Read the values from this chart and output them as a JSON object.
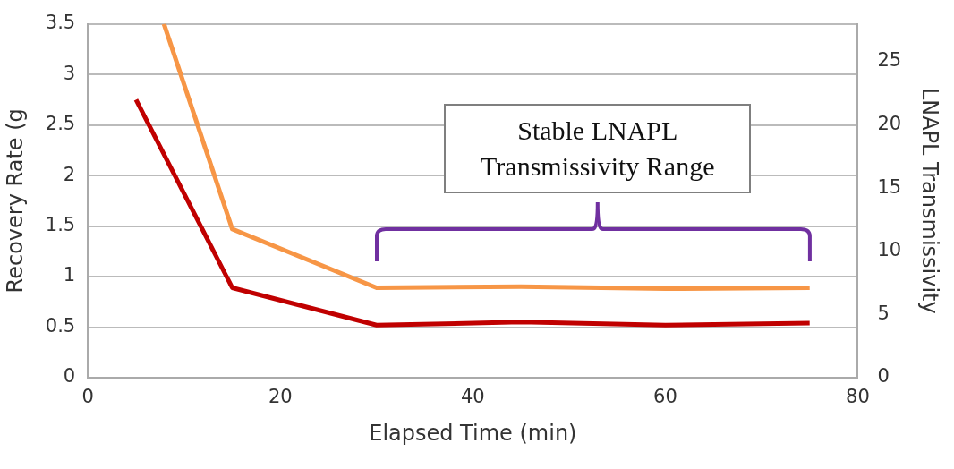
{
  "chart_data": {
    "type": "line",
    "xlabel": "Elapsed Time (min)",
    "ylabel": "Recovery Rate (g",
    "y2label": "LNAPL Transmissivity",
    "xlim": [
      0,
      80
    ],
    "xticks": [
      0,
      20,
      40,
      60,
      80
    ],
    "ylim": [
      0,
      3.5
    ],
    "yticks": [
      0,
      0.5,
      1,
      1.5,
      2,
      2.5,
      3,
      3.5
    ],
    "y2lim": [
      0,
      28
    ],
    "y2ticks": [
      0,
      5,
      10,
      15,
      20,
      25
    ],
    "grid": "y",
    "legend": false,
    "marker": "none",
    "line_style": "solid",
    "series": [
      {
        "color": "#c00000",
        "x": [
          5,
          15,
          30,
          45,
          60,
          75
        ],
        "values": [
          2.75,
          0.89,
          0.52,
          0.55,
          0.52,
          0.54
        ]
      },
      {
        "color": "#f79646",
        "x": [
          7.9,
          15,
          30,
          45,
          60,
          75
        ],
        "values": [
          3.5,
          1.47,
          0.89,
          0.9,
          0.88,
          0.89
        ]
      }
    ],
    "annotations": [
      "Stable LNAPL Transmissivity Range"
    ]
  }
}
